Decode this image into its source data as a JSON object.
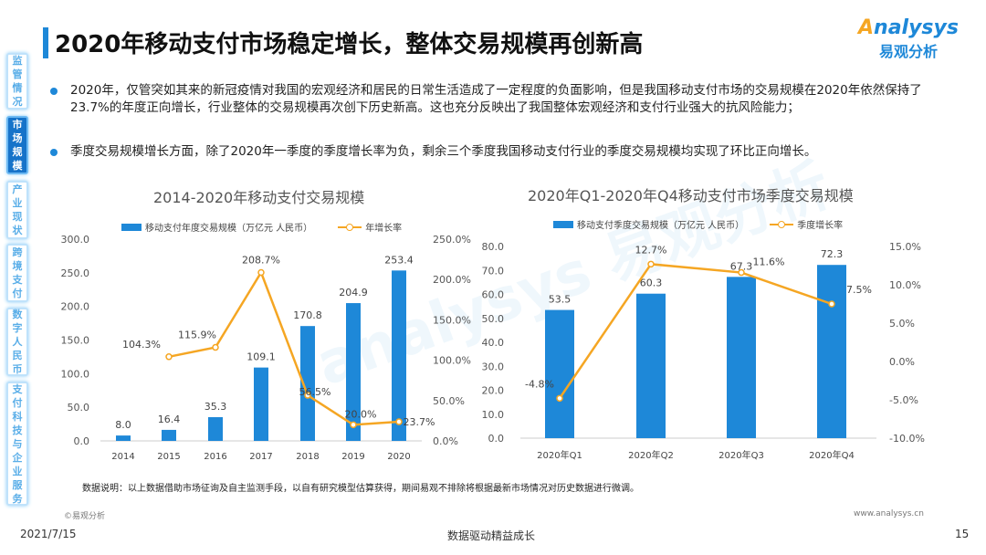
{
  "title": "2020年移动支付市场稳定增长，整体交易规模再创新高",
  "logo": {
    "en": "Analysys",
    "cn": "易观分析"
  },
  "sidebar": {
    "items": [
      {
        "label": "监管情况",
        "active": false
      },
      {
        "label": "市场规模",
        "active": true
      },
      {
        "label": "产业现状",
        "active": false
      },
      {
        "label": "跨境支付",
        "active": false
      },
      {
        "label": "数字人民币",
        "active": false
      },
      {
        "label": "支付科技与企业服务",
        "active": false
      }
    ]
  },
  "bullets": [
    "2020年，仅管突如其来的新冠疫情对我国的宏观经济和居民的日常生活造成了一定程度的负面影响，但是我国移动支付市场的交易规模在2020年依然保持了23.7%的年度正向增长，行业整体的交易规模再次创下历史新高。这也充分反映出了我国整体宏观经济和支付行业强大的抗风险能力；",
    "季度交易规模增长方面，除了2020年一季度的季度增长率为负，剩余三个季度我国移动支付行业的季度交易规模均实现了环比正向增长。"
  ],
  "colors": {
    "bar": "#1e88d8",
    "line": "#f5a623",
    "accent": "#1e88d8"
  },
  "chart_data": [
    {
      "type": "bar+line",
      "title": "2014-2020年移动支付交易规模",
      "categories": [
        "2014",
        "2015",
        "2016",
        "2017",
        "2018",
        "2019",
        "2020"
      ],
      "series": [
        {
          "name": "移动支付年度交易规模（万亿元  人民币）",
          "type": "bar",
          "axis": "left",
          "values": [
            8.0,
            16.4,
            35.3,
            109.1,
            170.8,
            204.9,
            253.4
          ],
          "labels": [
            "8.0",
            "16.4",
            "35.3",
            "109.1",
            "170.8",
            "204.9",
            "253.4"
          ]
        },
        {
          "name": "年增长率",
          "type": "line",
          "axis": "right",
          "values": [
            null,
            104.3,
            115.9,
            208.7,
            56.5,
            20.0,
            23.7
          ],
          "labels": [
            "",
            "104.3%",
            "115.9%",
            "208.7%",
            "56.5%",
            "20.0%",
            "23.7%"
          ]
        }
      ],
      "ylim": [
        0,
        300
      ],
      "yticks": [
        "0.0",
        "50.0",
        "100.0",
        "150.0",
        "200.0",
        "250.0",
        "300.0"
      ],
      "y2lim": [
        0,
        250
      ],
      "y2ticks": [
        "0.0%",
        "50.0%",
        "100.0%",
        "150.0%",
        "200.0%",
        "250.0%"
      ],
      "legend": "top",
      "grid": false
    },
    {
      "type": "bar+line",
      "title": "2020年Q1-2020年Q4移动支付市场季度交易规模",
      "categories": [
        "2020年Q1",
        "2020年Q2",
        "2020年Q3",
        "2020年Q4"
      ],
      "series": [
        {
          "name": "移动支付季度交易规模（万亿元  人民币）",
          "type": "bar",
          "axis": "left",
          "values": [
            53.5,
            60.3,
            67.3,
            72.3
          ],
          "labels": [
            "53.5",
            "60.3",
            "67.3",
            "72.3"
          ]
        },
        {
          "name": "季度增长率",
          "type": "line",
          "axis": "right",
          "values": [
            -4.8,
            12.7,
            11.6,
            7.5
          ],
          "labels": [
            "-4.8%",
            "12.7%",
            "11.6%",
            "7.5%"
          ]
        }
      ],
      "ylim": [
        0,
        80
      ],
      "yticks": [
        "0.0",
        "10.0",
        "20.0",
        "30.0",
        "40.0",
        "50.0",
        "60.0",
        "70.0",
        "80.0"
      ],
      "y2lim": [
        -10,
        15
      ],
      "y2ticks": [
        "-10.0%",
        "-5.0%",
        "0.0%",
        "5.0%",
        "10.0%",
        "15.0%"
      ],
      "legend": "top",
      "grid": false
    }
  ],
  "note": "数据说明：以上数据借助市场征询及自主监测手段，以自有研究模型估算获得，期间易观不排除将根据最新市场情况对历史数据进行微调。",
  "copyright": "©易观分析",
  "website": "www.analysys.cn",
  "footer": {
    "date": "2021/7/15",
    "slogan": "数据驱动精益成长",
    "page": "15"
  }
}
